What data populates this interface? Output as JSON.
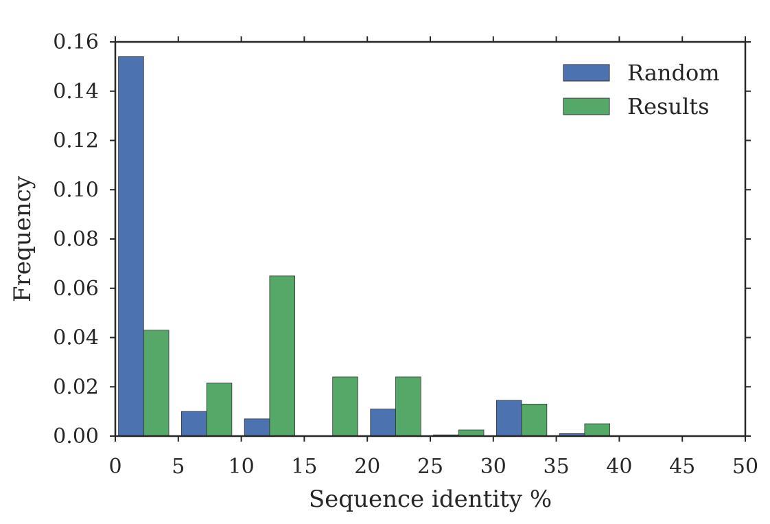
{
  "chart_data": {
    "type": "bar",
    "title": "",
    "xlabel": "Sequence identity %",
    "ylabel": "Frequency",
    "xlim": [
      0,
      50
    ],
    "ylim": [
      0,
      0.16
    ],
    "xticks": [
      "0",
      "5",
      "10",
      "15",
      "20",
      "25",
      "30",
      "35",
      "40",
      "45",
      "50"
    ],
    "yticks": [
      "0.00",
      "0.02",
      "0.04",
      "0.06",
      "0.08",
      "0.10",
      "0.12",
      "0.14",
      "0.16"
    ],
    "bins": [
      [
        0,
        5
      ],
      [
        5,
        10
      ],
      [
        10,
        15
      ],
      [
        15,
        20
      ],
      [
        20,
        25
      ],
      [
        25,
        30
      ],
      [
        30,
        35
      ],
      [
        35,
        40
      ],
      [
        40,
        45
      ],
      [
        45,
        50
      ]
    ],
    "series": [
      {
        "name": "Random",
        "color": "#4c72b0",
        "values": [
          0.154,
          0.01,
          0.007,
          0.0,
          0.011,
          0.0005,
          0.0145,
          0.001,
          0.0,
          0.0
        ]
      },
      {
        "name": "Results",
        "color": "#55a868",
        "values": [
          0.043,
          0.0215,
          0.065,
          0.024,
          0.024,
          0.0025,
          0.013,
          0.005,
          0.0,
          0.0
        ]
      }
    ],
    "legend_position": "top-right",
    "grid": false
  }
}
